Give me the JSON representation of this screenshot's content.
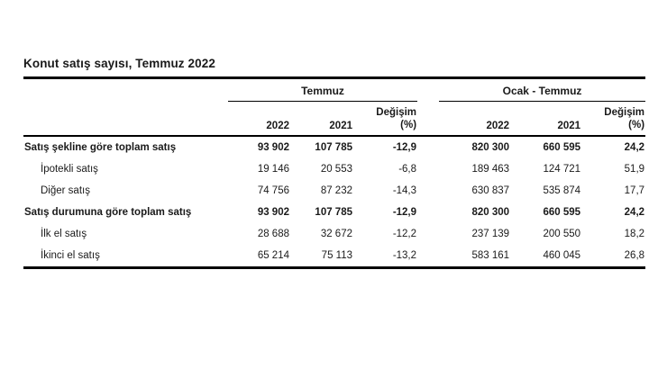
{
  "title": "Konut satış sayısı, Temmuz 2022",
  "colors": {
    "background": "#ffffff",
    "text": "#1a1a1a",
    "rule": "#000000"
  },
  "table": {
    "groups": {
      "temmuz": {
        "label": "Temmuz"
      },
      "ocak_temmuz": {
        "label": "Ocak - Temmuz"
      }
    },
    "columns": {
      "temmuz": {
        "year_current": "2022",
        "year_previous": "2021",
        "change_line1": "Değişim",
        "change_line2": "(%)"
      },
      "ocak_temmuz": {
        "year_current": "2022",
        "year_previous": "2021",
        "change_line1": "Değişim",
        "change_line2": "(%)"
      }
    },
    "rows": [
      {
        "label": "Satış şekline göre toplam satış",
        "temmuz": {
          "y2022": "93 902",
          "y2021": "107 785",
          "change": "-12,9"
        },
        "ocak_temmuz": {
          "y2022": "820 300",
          "y2021": "660 595",
          "change": "24,2"
        }
      },
      {
        "label": "İpotekli satış",
        "temmuz": {
          "y2022": "19 146",
          "y2021": "20 553",
          "change": "-6,8"
        },
        "ocak_temmuz": {
          "y2022": "189 463",
          "y2021": "124 721",
          "change": "51,9"
        }
      },
      {
        "label": "Diğer satış",
        "temmuz": {
          "y2022": "74 756",
          "y2021": "87 232",
          "change": "-14,3"
        },
        "ocak_temmuz": {
          "y2022": "630 837",
          "y2021": "535 874",
          "change": "17,7"
        }
      },
      {
        "label": "Satış durumuna göre toplam satış",
        "temmuz": {
          "y2022": "93 902",
          "y2021": "107 785",
          "change": "-12,9"
        },
        "ocak_temmuz": {
          "y2022": "820 300",
          "y2021": "660 595",
          "change": "24,2"
        }
      },
      {
        "label": "İlk el satış",
        "temmuz": {
          "y2022": "28 688",
          "y2021": "32 672",
          "change": "-12,2"
        },
        "ocak_temmuz": {
          "y2022": "237 139",
          "y2021": "200 550",
          "change": "18,2"
        }
      },
      {
        "label": "İkinci el satış",
        "temmuz": {
          "y2022": "65 214",
          "y2021": "75 113",
          "change": "-13,2"
        },
        "ocak_temmuz": {
          "y2022": "583 161",
          "y2021": "460 045",
          "change": "26,8"
        }
      }
    ]
  }
}
